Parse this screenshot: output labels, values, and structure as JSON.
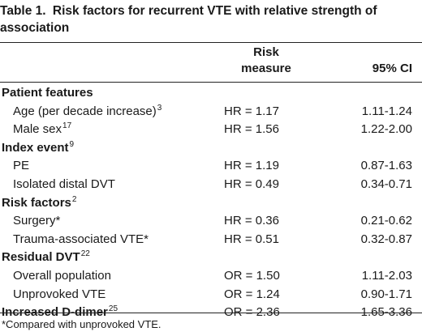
{
  "table": {
    "caption_number": "Table 1.",
    "caption_text": "Risk factors for recurrent VTE with relative strength of association",
    "header": {
      "measure_line1": "Risk",
      "measure_line2": "measure",
      "ci": "95% CI"
    },
    "rows": [
      {
        "type": "section",
        "label": "Patient features",
        "ref": "",
        "measure": "",
        "ci": ""
      },
      {
        "type": "item",
        "label": "Age (per decade increase)",
        "ref": "3",
        "measure": "HR = 1.17",
        "ci": "1.11-1.24"
      },
      {
        "type": "item",
        "label": "Male sex",
        "ref": "17",
        "measure": "HR = 1.56",
        "ci": "1.22-2.00"
      },
      {
        "type": "section",
        "label": "Index event",
        "ref": "9",
        "measure": "",
        "ci": ""
      },
      {
        "type": "item",
        "label": "PE",
        "ref": "",
        "measure": "HR = 1.19",
        "ci": "0.87-1.63"
      },
      {
        "type": "item",
        "label": "Isolated distal DVT",
        "ref": "",
        "measure": "HR = 0.49",
        "ci": "0.34-0.71"
      },
      {
        "type": "section",
        "label": "Risk factors",
        "ref": "2",
        "measure": "",
        "ci": ""
      },
      {
        "type": "item",
        "label": "Surgery*",
        "ref": "",
        "measure": "HR = 0.36",
        "ci": "0.21-0.62"
      },
      {
        "type": "item",
        "label": "Trauma-associated VTE*",
        "ref": "",
        "measure": "HR = 0.51",
        "ci": "0.32-0.87"
      },
      {
        "type": "section",
        "label": "Residual DVT",
        "ref": "22",
        "measure": "",
        "ci": ""
      },
      {
        "type": "item",
        "label": "Overall population",
        "ref": "",
        "measure": "OR = 1.50",
        "ci": "1.11-2.03"
      },
      {
        "type": "item",
        "label": "Unprovoked VTE",
        "ref": "",
        "measure": "OR = 1.24",
        "ci": "0.90-1.71"
      },
      {
        "type": "section",
        "label": "Increased D-dimer",
        "ref": "25",
        "measure": "OR = 2.36",
        "ci": "1.65-3.36"
      }
    ],
    "footnote": "*Compared with unprovoked VTE."
  }
}
